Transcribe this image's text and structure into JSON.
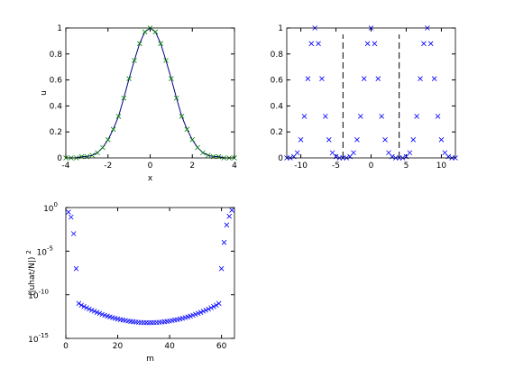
{
  "chart_data": [
    {
      "type": "line",
      "xlabel": "x",
      "ylabel": "u",
      "xlim": [
        -4,
        4
      ],
      "ylim": [
        0,
        1
      ],
      "xticks": [
        -4,
        -2,
        0,
        2,
        4
      ],
      "yticks": [
        0,
        0.2,
        0.4,
        0.6,
        0.8,
        1
      ],
      "x": [
        -4,
        -3.75,
        -3.5,
        -3.25,
        -3,
        -2.75,
        -2.5,
        -2.25,
        -2,
        -1.75,
        -1.5,
        -1.25,
        -1,
        -0.75,
        -0.5,
        -0.25,
        0,
        0.25,
        0.5,
        0.75,
        1,
        1.25,
        1.5,
        1.75,
        2,
        2.25,
        2.5,
        2.75,
        3,
        3.25,
        3.5,
        3.75,
        4
      ],
      "series": [
        {
          "color": "#000080",
          "style": "line",
          "values": [
            0,
            0,
            0,
            0.01,
            0.01,
            0.02,
            0.04,
            0.08,
            0.14,
            0.22,
            0.32,
            0.46,
            0.61,
            0.75,
            0.88,
            0.97,
            1,
            0.97,
            0.88,
            0.75,
            0.61,
            0.46,
            0.32,
            0.22,
            0.14,
            0.08,
            0.04,
            0.02,
            0.01,
            0.01,
            0,
            0,
            0
          ]
        },
        {
          "color": "#008000",
          "style": "marker",
          "values": [
            0,
            0,
            0,
            0.01,
            0.01,
            0.02,
            0.04,
            0.08,
            0.14,
            0.22,
            0.32,
            0.46,
            0.61,
            0.75,
            0.88,
            0.97,
            1,
            0.97,
            0.88,
            0.75,
            0.61,
            0.46,
            0.32,
            0.22,
            0.14,
            0.08,
            0.04,
            0.02,
            0.01,
            0.01,
            0,
            0,
            0
          ]
        }
      ]
    },
    {
      "type": "line",
      "xlim": [
        -12,
        12
      ],
      "ylim": [
        0,
        1
      ],
      "xticks": [
        -10,
        -5,
        0,
        5,
        10
      ],
      "yticks": [
        0,
        0.2,
        0.4,
        0.6,
        0.8,
        1
      ],
      "x": [
        -12,
        -11.5,
        -11,
        -10.5,
        -10,
        -9.5,
        -9,
        -8.5,
        -8,
        -7.5,
        -7,
        -6.5,
        -6,
        -5.5,
        -5,
        -4.5,
        -4,
        -3.5,
        -3,
        -2.5,
        -2,
        -1.5,
        -1,
        -0.5,
        0,
        0.5,
        1,
        1.5,
        2,
        2.5,
        3,
        3.5,
        4,
        4.5,
        5,
        5.5,
        6,
        6.5,
        7,
        7.5,
        8,
        8.5,
        9,
        9.5,
        10,
        10.5,
        11,
        11.5,
        12
      ],
      "series": [
        {
          "color": "#0000ff",
          "style": "marker",
          "values": [
            0,
            0,
            0.01,
            0.04,
            0.14,
            0.32,
            0.61,
            0.88,
            1,
            0.88,
            0.61,
            0.32,
            0.14,
            0.04,
            0.01,
            0,
            0,
            0,
            0.01,
            0.04,
            0.14,
            0.32,
            0.61,
            0.88,
            1,
            0.88,
            0.61,
            0.32,
            0.14,
            0.04,
            0.01,
            0,
            0,
            0,
            0.01,
            0.04,
            0.14,
            0.32,
            0.61,
            0.88,
            1,
            0.88,
            0.61,
            0.32,
            0.14,
            0.04,
            0.01,
            0,
            0
          ]
        }
      ],
      "vlines": {
        "color": "#000000",
        "x": [
          -4,
          4
        ],
        "y": [
          0,
          0.95
        ]
      }
    },
    {
      "type": "line",
      "xlabel": "m",
      "ylabel": "(|uhat/N|)",
      "ylabel_exp": "2",
      "log_y": true,
      "xlim": [
        0,
        65
      ],
      "ylim": [
        1e-15,
        1
      ],
      "xticks": [
        0,
        20,
        40,
        60
      ],
      "yticks": [
        {
          "value": 1,
          "label": "10",
          "exp": "0"
        },
        {
          "value": 1e-05,
          "label": "10",
          "exp": "-5"
        },
        {
          "value": 1e-10,
          "label": "10",
          "exp": "-10"
        },
        {
          "value": 1e-15,
          "label": "10",
          "exp": "-15"
        }
      ],
      "x": [
        1,
        2,
        3,
        4,
        5,
        6,
        7,
        8,
        9,
        10,
        11,
        12,
        13,
        14,
        15,
        16,
        17,
        18,
        19,
        20,
        21,
        22,
        23,
        24,
        25,
        26,
        27,
        28,
        29,
        30,
        31,
        32,
        33,
        34,
        35,
        36,
        37,
        38,
        39,
        40,
        41,
        42,
        43,
        44,
        45,
        46,
        47,
        48,
        49,
        50,
        51,
        52,
        53,
        54,
        55,
        56,
        57,
        58,
        59,
        60,
        61,
        62,
        63,
        64
      ],
      "series": [
        {
          "color": "#0000ff",
          "style": "marker",
          "values": [
            0.3,
            0.08,
            0.001,
            1e-07,
            1e-11,
            6.3e-12,
            4.5e-12,
            3.2e-12,
            2.3e-12,
            1.7e-12,
            1.3e-12,
            9.6e-13,
            7.4e-13,
            5.7e-13,
            4.5e-13,
            3.6e-13,
            2.9e-13,
            2.4e-13,
            2e-13,
            1.7e-13,
            1.4e-13,
            1.3e-13,
            1.1e-13,
            9.8e-14,
            8.8e-14,
            8.1e-14,
            7.5e-14,
            7.1e-14,
            6.7e-14,
            6.5e-14,
            6.4e-14,
            6.3e-14,
            6.4e-14,
            6.5e-14,
            6.7e-14,
            7.1e-14,
            7.5e-14,
            8.1e-14,
            8.8e-14,
            9.8e-14,
            1.1e-13,
            1.3e-13,
            1.4e-13,
            1.7e-13,
            2e-13,
            2.4e-13,
            2.9e-13,
            3.6e-13,
            4.5e-13,
            5.7e-13,
            7.4e-13,
            9.6e-13,
            1.3e-12,
            1.7e-12,
            2.3e-12,
            3.2e-12,
            4.5e-12,
            6.3e-12,
            1e-11,
            1e-07,
            0.0001,
            0.01,
            0.1,
            0.5
          ]
        }
      ]
    }
  ]
}
